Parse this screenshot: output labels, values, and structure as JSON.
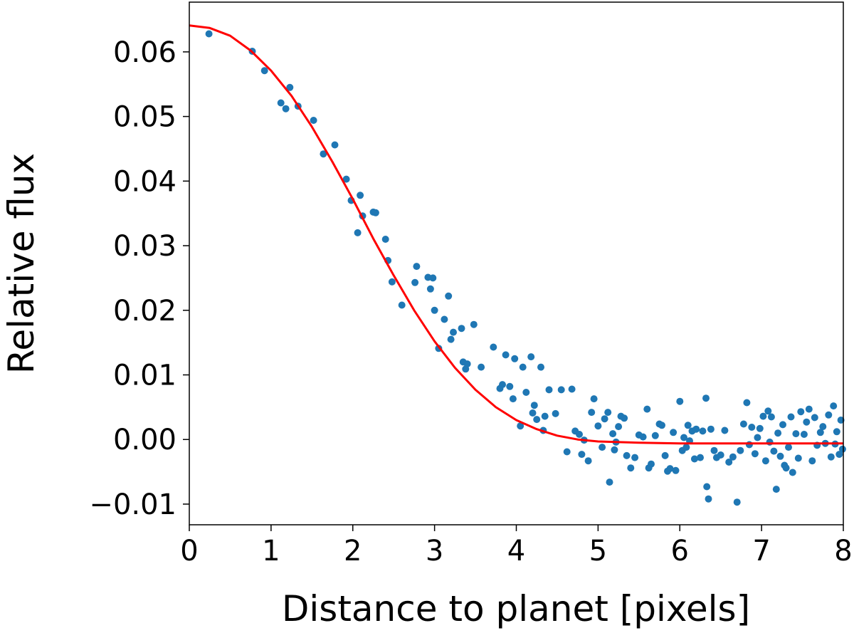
{
  "colors": {
    "points": "#1f77b4",
    "fit_line": "#ff0000",
    "axes": "#000000",
    "background": "#ffffff"
  },
  "chart_data": {
    "type": "scatter",
    "title": "",
    "xlabel": "Distance to planet [pixels]",
    "ylabel": "Relative flux",
    "xlim": [
      0,
      8
    ],
    "ylim": [
      -0.0132,
      0.0677
    ],
    "grid": false,
    "x_ticks": [
      0,
      1,
      2,
      3,
      4,
      5,
      6,
      7,
      8
    ],
    "x_tick_labels": [
      "0",
      "1",
      "2",
      "3",
      "4",
      "5",
      "6",
      "7",
      "8"
    ],
    "y_ticks": [
      -0.01,
      0.0,
      0.01,
      0.02,
      0.03,
      0.04,
      0.05,
      0.06
    ],
    "y_tick_labels": [
      "−0.01",
      "0.00",
      "0.01",
      "0.02",
      "0.03",
      "0.04",
      "0.05",
      "0.06"
    ],
    "series": [
      {
        "kind": "scatter",
        "points": [
          [
            0.24,
            0.0628
          ],
          [
            0.77,
            0.0601
          ],
          [
            0.92,
            0.0571
          ],
          [
            1.12,
            0.0521
          ],
          [
            1.18,
            0.0512
          ],
          [
            1.23,
            0.0545
          ],
          [
            1.33,
            0.0516
          ],
          [
            1.52,
            0.0494
          ],
          [
            1.64,
            0.0442
          ],
          [
            1.78,
            0.0456
          ],
          [
            1.92,
            0.0403
          ],
          [
            1.98,
            0.037
          ],
          [
            2.06,
            0.032
          ],
          [
            2.09,
            0.0378
          ],
          [
            2.12,
            0.0346
          ],
          [
            2.25,
            0.0352
          ],
          [
            2.28,
            0.0351
          ],
          [
            2.4,
            0.031
          ],
          [
            2.43,
            0.0277
          ],
          [
            2.48,
            0.0244
          ],
          [
            2.6,
            0.0208
          ],
          [
            2.78,
            0.0268
          ],
          [
            2.76,
            0.0243
          ],
          [
            2.92,
            0.0251
          ],
          [
            2.98,
            0.025
          ],
          [
            2.95,
            0.0233
          ],
          [
            3.0,
            0.02
          ],
          [
            3.05,
            0.0141
          ],
          [
            3.12,
            0.0186
          ],
          [
            3.17,
            0.0222
          ],
          [
            3.2,
            0.0155
          ],
          [
            3.23,
            0.0166
          ],
          [
            3.33,
            0.0172
          ],
          [
            3.35,
            0.012
          ],
          [
            3.38,
            0.0109
          ],
          [
            3.4,
            0.0117
          ],
          [
            3.48,
            0.0178
          ],
          [
            3.57,
            0.0112
          ],
          [
            3.72,
            0.0143
          ],
          [
            3.8,
            0.0079
          ],
          [
            3.83,
            0.0085
          ],
          [
            3.87,
            0.0131
          ],
          [
            3.92,
            0.0082
          ],
          [
            3.96,
            0.0063
          ],
          [
            3.98,
            0.0125
          ],
          [
            4.05,
            0.0021
          ],
          [
            4.08,
            0.0112
          ],
          [
            4.12,
            0.0073
          ],
          [
            4.18,
            0.0128
          ],
          [
            4.2,
            0.0041
          ],
          [
            4.22,
            0.0053
          ],
          [
            4.25,
            0.0031
          ],
          [
            4.3,
            0.0112
          ],
          [
            4.33,
            0.0014
          ],
          [
            4.35,
            0.0036
          ],
          [
            4.4,
            0.0077
          ],
          [
            4.48,
            0.004
          ],
          [
            4.55,
            0.0077
          ],
          [
            4.62,
            -0.0019
          ],
          [
            4.68,
            0.0078
          ],
          [
            4.72,
            0.0013
          ],
          [
            4.77,
            0.0008
          ],
          [
            4.8,
            -0.0023
          ],
          [
            4.83,
            -0.0001
          ],
          [
            4.88,
            -0.0033
          ],
          [
            4.92,
            0.0042
          ],
          [
            4.95,
            0.0063
          ],
          [
            5.0,
            0.0021
          ],
          [
            5.05,
            -0.0012
          ],
          [
            5.08,
            0.0032
          ],
          [
            5.12,
            0.0042
          ],
          [
            5.14,
            -0.0066
          ],
          [
            5.18,
            0.0009
          ],
          [
            5.2,
            -0.0016
          ],
          [
            5.22,
            -0.0004
          ],
          [
            5.25,
            0.002
          ],
          [
            5.28,
            0.0036
          ],
          [
            5.32,
            0.0033
          ],
          [
            5.35,
            -0.0025
          ],
          [
            5.4,
            -0.0044
          ],
          [
            5.45,
            -0.0028
          ],
          [
            5.5,
            0.0007
          ],
          [
            5.55,
            0.0004
          ],
          [
            5.6,
            0.0047
          ],
          [
            5.62,
            -0.0044
          ],
          [
            5.65,
            -0.0038
          ],
          [
            5.7,
            0.0006
          ],
          [
            5.75,
            0.0024
          ],
          [
            5.78,
            0.0022
          ],
          [
            5.82,
            -0.0025
          ],
          [
            5.85,
            -0.0049
          ],
          [
            5.88,
            -0.0045
          ],
          [
            5.92,
            0.0011
          ],
          [
            5.95,
            -0.0048
          ],
          [
            6.0,
            0.0059
          ],
          [
            6.03,
            -0.0017
          ],
          [
            6.05,
            0.0003
          ],
          [
            6.08,
            -0.0012
          ],
          [
            6.1,
            0.0022
          ],
          [
            6.12,
            -0.0002
          ],
          [
            6.15,
            0.0013
          ],
          [
            6.18,
            -0.003
          ],
          [
            6.2,
            0.0016
          ],
          [
            6.25,
            -0.0028
          ],
          [
            6.28,
            0.0013
          ],
          [
            6.32,
            0.0064
          ],
          [
            6.33,
            -0.0073
          ],
          [
            6.35,
            -0.0092
          ],
          [
            6.38,
            0.0016
          ],
          [
            6.42,
            -0.0017
          ],
          [
            6.45,
            -0.0028
          ],
          [
            6.5,
            -0.0024
          ],
          [
            6.55,
            0.0014
          ],
          [
            6.6,
            -0.0035
          ],
          [
            6.65,
            -0.0027
          ],
          [
            6.7,
            -0.0097
          ],
          [
            6.74,
            -0.0017
          ],
          [
            6.78,
            0.0024
          ],
          [
            6.82,
            0.0057
          ],
          [
            6.85,
            -0.0008
          ],
          [
            6.88,
            0.0019
          ],
          [
            6.92,
            -0.0022
          ],
          [
            6.95,
            0.0003
          ],
          [
            6.98,
            0.0017
          ],
          [
            7.02,
            0.0036
          ],
          [
            7.05,
            -0.0033
          ],
          [
            7.08,
            0.0044
          ],
          [
            7.1,
            -0.0004
          ],
          [
            7.12,
            0.0035
          ],
          [
            7.15,
            -0.0018
          ],
          [
            7.18,
            -0.0077
          ],
          [
            7.2,
            0.001
          ],
          [
            7.23,
            -0.0026
          ],
          [
            7.26,
            0.0023
          ],
          [
            7.28,
            -0.004
          ],
          [
            7.3,
            -0.0044
          ],
          [
            7.33,
            -0.0012
          ],
          [
            7.36,
            0.0035
          ],
          [
            7.38,
            -0.0051
          ],
          [
            7.42,
            0.0009
          ],
          [
            7.45,
            -0.0029
          ],
          [
            7.48,
            0.0043
          ],
          [
            7.52,
            0.0008
          ],
          [
            7.55,
            0.0027
          ],
          [
            7.58,
            0.0047
          ],
          [
            7.62,
            -0.0033
          ],
          [
            7.65,
            0.0034
          ],
          [
            7.68,
            -0.0009
          ],
          [
            7.72,
            0.0011
          ],
          [
            7.75,
            0.002
          ],
          [
            7.78,
            -0.0006
          ],
          [
            7.82,
            0.0038
          ],
          [
            7.85,
            -0.0027
          ],
          [
            7.88,
            0.0052
          ],
          [
            7.9,
            -0.0007
          ],
          [
            7.92,
            0.0012
          ],
          [
            7.95,
            -0.0023
          ],
          [
            7.97,
            0.003
          ],
          [
            7.99,
            -0.0015
          ]
        ]
      },
      {
        "kind": "line",
        "points": [
          [
            0.0,
            0.0641
          ],
          [
            0.25,
            0.0637
          ],
          [
            0.5,
            0.0625
          ],
          [
            0.75,
            0.0602
          ],
          [
            1.0,
            0.0571
          ],
          [
            1.25,
            0.0532
          ],
          [
            1.5,
            0.0484
          ],
          [
            1.75,
            0.043
          ],
          [
            2.0,
            0.0372
          ],
          [
            2.25,
            0.0311
          ],
          [
            2.5,
            0.0254
          ],
          [
            2.75,
            0.02
          ],
          [
            3.0,
            0.0152
          ],
          [
            3.25,
            0.0111
          ],
          [
            3.5,
            0.0077
          ],
          [
            3.75,
            0.005
          ],
          [
            4.0,
            0.003
          ],
          [
            4.25,
            0.0016
          ],
          [
            4.5,
            0.0006
          ],
          [
            4.75,
            0.0
          ],
          [
            5.0,
            -0.0003
          ],
          [
            5.5,
            -0.0005
          ],
          [
            6.0,
            -0.0006
          ],
          [
            7.0,
            -0.0006
          ],
          [
            8.0,
            -0.0006
          ]
        ]
      }
    ]
  }
}
